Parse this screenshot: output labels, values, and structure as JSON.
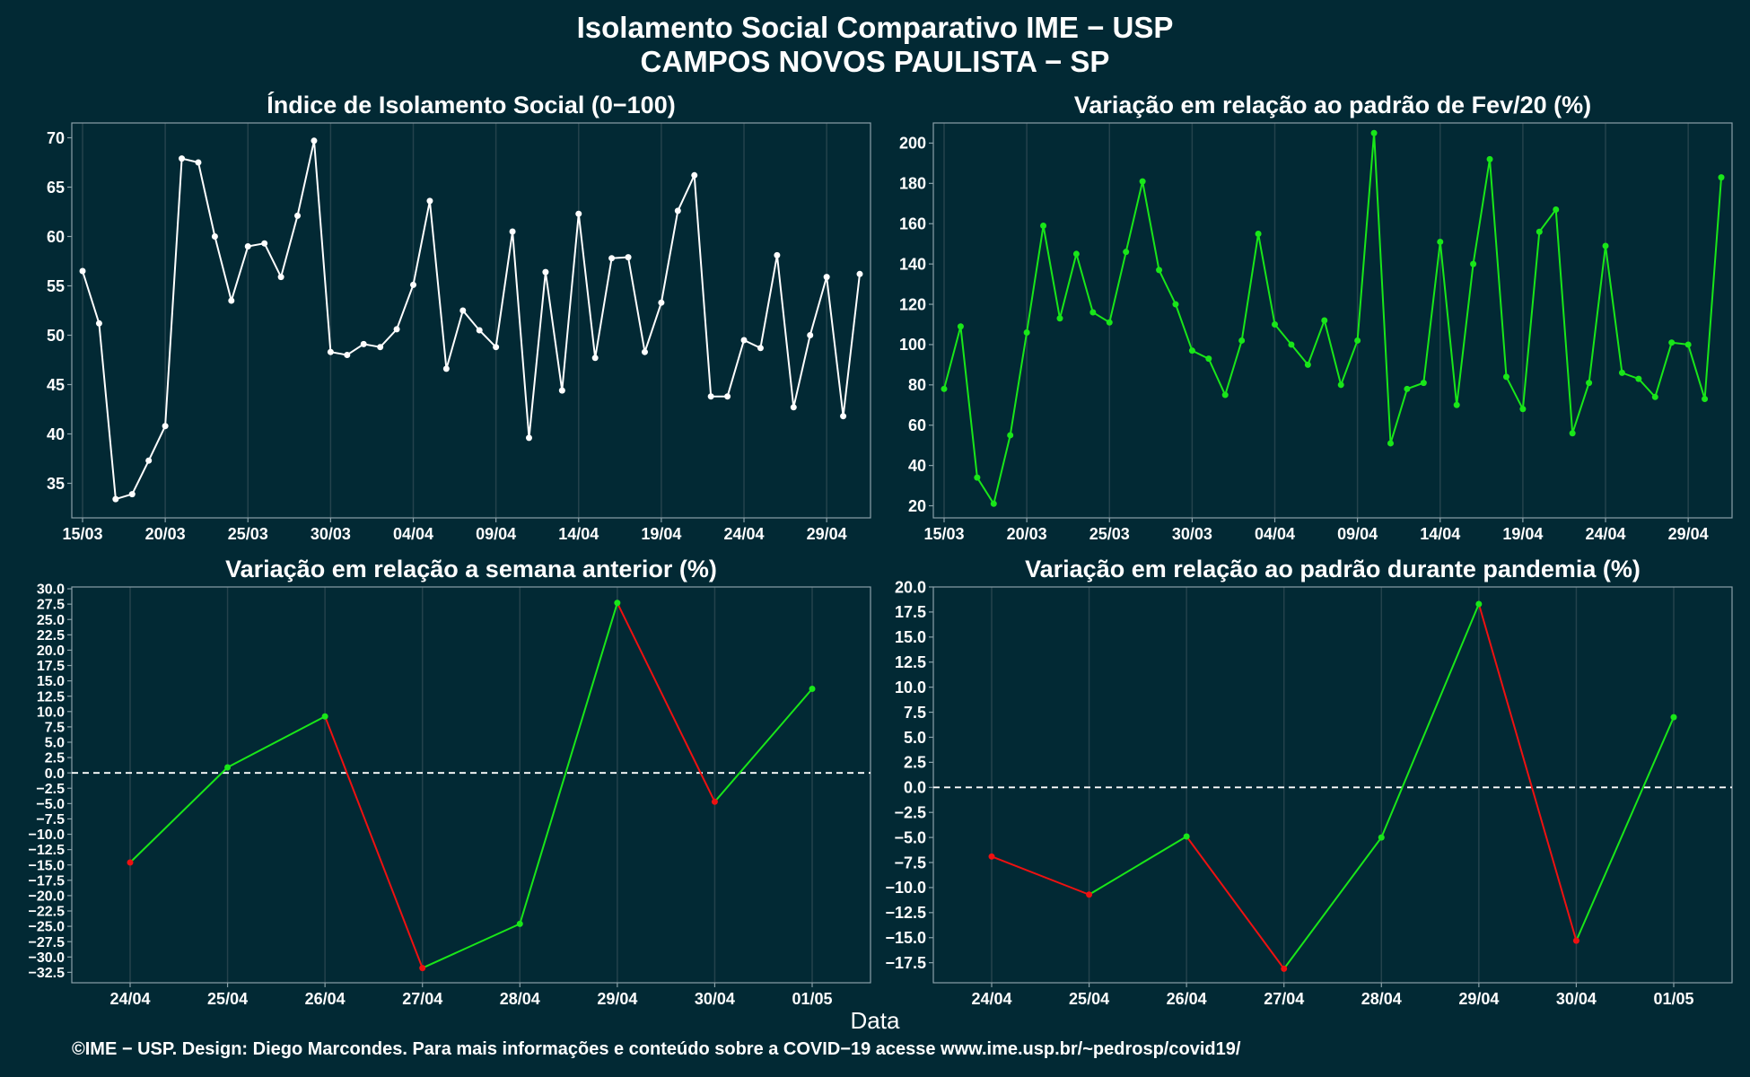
{
  "header": {
    "title": "Isolamento Social Comparativo IME − USP",
    "subtitle": "CAMPOS NOVOS PAULISTA − SP"
  },
  "footer": {
    "xlabel": "Data",
    "caption": "©IME − USP. Design: Diego Marcondes. Para mais informações e conteúdo sobre a COVID−19 acesse www.ime.usp.br/~pedrosp/covid19/"
  },
  "colors": {
    "background": "#022934",
    "panel_border": "#8aa0a8",
    "grid": "#24424c",
    "white_series": "#ffffff",
    "increase": "#19e619",
    "decrease": "#ee1111",
    "zero_line": "#ffffff"
  },
  "chart_data": [
    {
      "id": "isolamento",
      "type": "line",
      "title": "Índice de Isolamento Social (0−100)",
      "x_start": "15/03",
      "x_ticks": [
        "15/03",
        "20/03",
        "25/03",
        "30/03",
        "04/04",
        "09/04",
        "14/04",
        "19/04",
        "24/04",
        "29/04"
      ],
      "y_ticks": [
        35,
        40,
        45,
        50,
        55,
        60,
        65,
        70
      ],
      "ylim": [
        31.5,
        71.5
      ],
      "series": [
        {
          "color": "#ffffff",
          "values": [
            56.5,
            51.2,
            33.4,
            33.9,
            37.3,
            40.8,
            67.9,
            67.5,
            60.0,
            53.5,
            59.0,
            59.3,
            55.9,
            62.1,
            69.7,
            48.3,
            48.0,
            49.1,
            48.8,
            50.6,
            55.1,
            63.6,
            46.6,
            52.5,
            50.5,
            48.8,
            60.5,
            39.6,
            56.4,
            44.4,
            62.3,
            47.7,
            57.8,
            57.9,
            48.3,
            53.3,
            62.6,
            66.2,
            43.8,
            43.8,
            49.5,
            48.7,
            58.1,
            42.7,
            50.0,
            55.9,
            41.8,
            56.2
          ]
        }
      ]
    },
    {
      "id": "fev20",
      "type": "line",
      "title": "Variação em relação ao padrão de Fev/20 (%)",
      "x_start": "15/03",
      "x_ticks": [
        "15/03",
        "20/03",
        "25/03",
        "30/03",
        "04/04",
        "09/04",
        "14/04",
        "19/04",
        "24/04",
        "29/04"
      ],
      "y_ticks": [
        20,
        40,
        60,
        80,
        100,
        120,
        140,
        160,
        180,
        200
      ],
      "ylim": [
        14,
        210
      ],
      "series": [
        {
          "color": "#19e619",
          "values": [
            78,
            109,
            34,
            21,
            55,
            106,
            159,
            113,
            145,
            116,
            111,
            146,
            181,
            137,
            120,
            97,
            93,
            75,
            102,
            155,
            110,
            100,
            90,
            112,
            80,
            102,
            205,
            51,
            78,
            81,
            151,
            70,
            140,
            192,
            84,
            68,
            156,
            167,
            56,
            81,
            149,
            86,
            83,
            74,
            101,
            100,
            73,
            183
          ]
        }
      ]
    },
    {
      "id": "semana",
      "type": "line",
      "title": "Variação em relação a semana anterior (%)",
      "categories": [
        "24/04",
        "25/04",
        "26/04",
        "27/04",
        "28/04",
        "29/04",
        "30/04",
        "01/05"
      ],
      "y_ticks": [
        -32.5,
        -30.0,
        -27.5,
        -25.0,
        -22.5,
        -20.0,
        -17.5,
        -15.0,
        -12.5,
        -10.0,
        -7.5,
        -5.0,
        -2.5,
        0.0,
        2.5,
        5.0,
        7.5,
        10.0,
        12.5,
        15.0,
        17.5,
        20.0,
        22.5,
        25.0,
        27.5,
        30.0
      ],
      "ylim": [
        -34.2,
        30.3
      ],
      "reference_line": 0,
      "series": [
        {
          "colored_by_direction": true,
          "values": [
            -14.6,
            0.9,
            9.2,
            -31.8,
            -24.6,
            27.7,
            -4.7,
            13.7
          ]
        }
      ]
    },
    {
      "id": "pandemia",
      "type": "line",
      "title": "Variação em relação ao padrão durante pandemia (%)",
      "categories": [
        "24/04",
        "25/04",
        "26/04",
        "27/04",
        "28/04",
        "29/04",
        "30/04",
        "01/05"
      ],
      "y_ticks": [
        -17.5,
        -15.0,
        -12.5,
        -10.0,
        -7.5,
        -5.0,
        -2.5,
        0.0,
        2.5,
        5.0,
        7.5,
        10.0,
        12.5,
        15.0,
        17.5,
        20.0
      ],
      "ylim": [
        -19.5,
        20.0
      ],
      "reference_line": 0,
      "series": [
        {
          "colored_by_direction": true,
          "values": [
            -6.9,
            -10.7,
            -4.9,
            -18.1,
            -5.0,
            18.3,
            -15.3,
            7.0
          ]
        }
      ]
    }
  ]
}
